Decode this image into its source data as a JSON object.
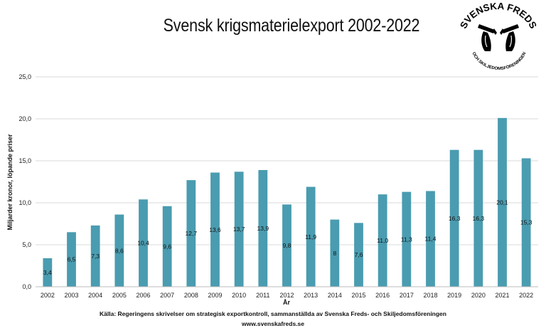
{
  "logo": {
    "top_text": "SVENSKA FREDS",
    "bottom_text": "OCH SKILJEDOMSFÖRENINGEN",
    "icon": "broken-rifle-hands-logo"
  },
  "footer": {
    "source": "Källa: Regeringens skrivelser om strategisk exportkontroll, sammanställda av Svenska Freds- och Skiljedomsföreningen",
    "website": "www.svenskafreds.se"
  },
  "chart_data": {
    "type": "bar",
    "title": "Svensk krigsmaterielexport 2002-2022",
    "xlabel": "År",
    "ylabel": "Miljarder kronor, löpande priser",
    "ylim": [
      0,
      25
    ],
    "yticks": [
      "0,0",
      "5,0",
      "10,0",
      "15,0",
      "20,0",
      "25,0"
    ],
    "grid": true,
    "legend": "none",
    "bar_color": "#4a9cb0",
    "categories": [
      "2002",
      "2003",
      "2004",
      "2005",
      "2006",
      "2007",
      "2008",
      "2009",
      "2010",
      "2011",
      "2012",
      "2013",
      "2014",
      "2015",
      "2016",
      "2017",
      "2018",
      "2019",
      "2020",
      "2021",
      "2022"
    ],
    "values": [
      3.4,
      6.5,
      7.3,
      8.6,
      10.4,
      9.6,
      12.7,
      13.6,
      13.7,
      13.9,
      9.8,
      11.9,
      8,
      7.6,
      11.0,
      11.3,
      11.4,
      16.3,
      16.3,
      20.1,
      15.3
    ],
    "data_labels": [
      "3,4",
      "6,5",
      "7,3",
      "8,6",
      "10,4",
      "9,6",
      "12,7",
      "13,6",
      "13,7",
      "13,9",
      "9,8",
      "11,9",
      "8",
      "7,6",
      "11,0",
      "11,3",
      "11,4",
      "16,3",
      "16,3",
      "20,1",
      "15,3"
    ]
  }
}
